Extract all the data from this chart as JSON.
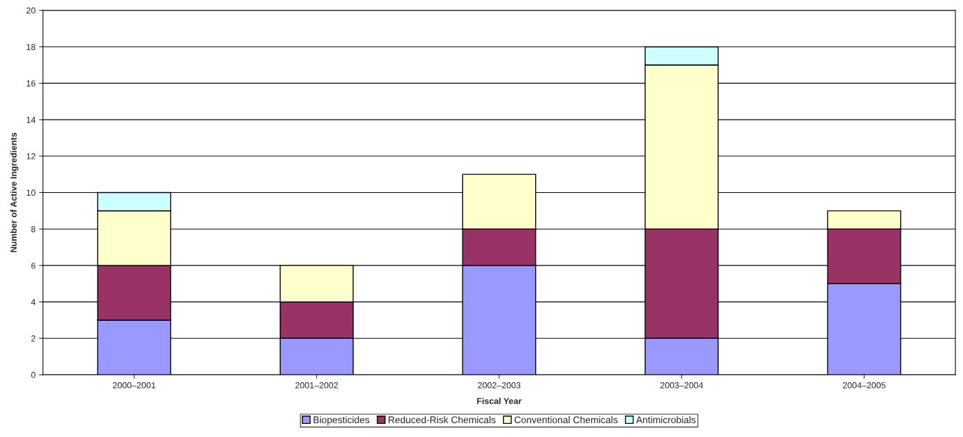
{
  "chart_data": {
    "type": "bar",
    "stacked": true,
    "xlabel": "Fiscal Year",
    "ylabel": "Number of Active Ingredients",
    "categories": [
      "2000–2001",
      "2001–2002",
      "2002–2003",
      "2003–2004",
      "2004–2005"
    ],
    "series": [
      {
        "name": "Biopesticides",
        "color": "#9999ff",
        "values": [
          3,
          2,
          6,
          2,
          5
        ]
      },
      {
        "name": "Reduced-Risk Chemicals",
        "color": "#993366",
        "values": [
          3,
          2,
          2,
          6,
          3
        ]
      },
      {
        "name": "Conventional Chemicals",
        "color": "#ffffcc",
        "values": [
          3,
          2,
          3,
          9,
          1
        ]
      },
      {
        "name": "Antimicrobials",
        "color": "#ccffff",
        "values": [
          1,
          0,
          0,
          1,
          0
        ]
      }
    ],
    "ylim": [
      0,
      20
    ],
    "yticks": [
      0,
      2,
      4,
      6,
      8,
      10,
      12,
      14,
      16,
      18,
      20
    ],
    "grid": "y",
    "legend": "bottom"
  }
}
